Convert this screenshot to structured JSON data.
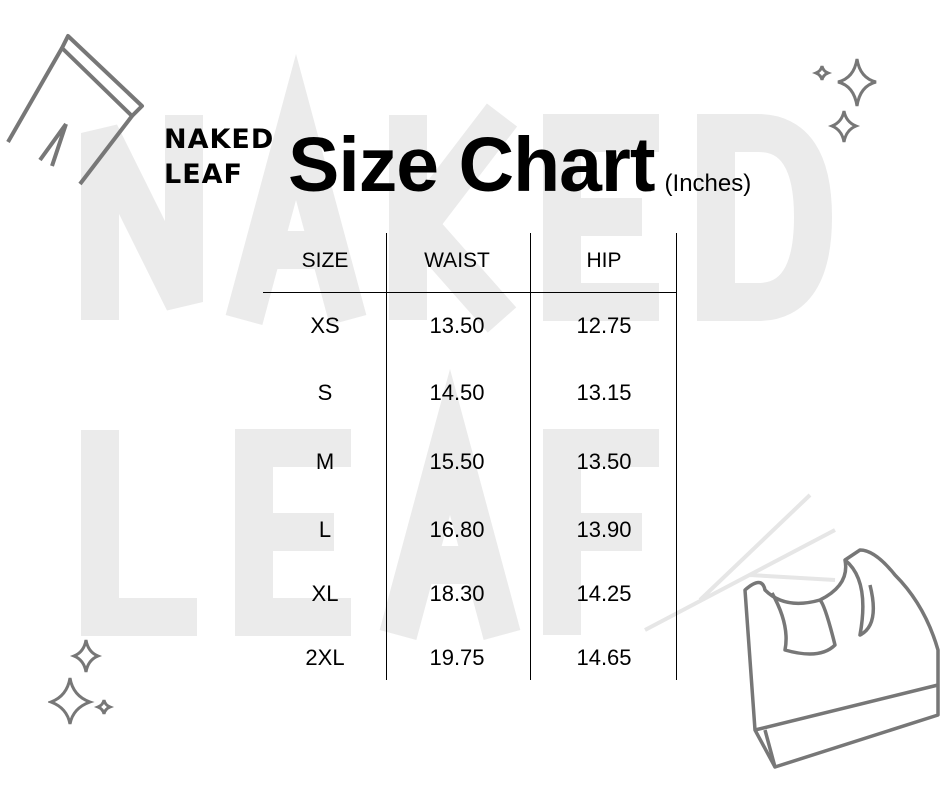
{
  "watermark": {
    "line1": "NAKED",
    "line2": "LEAF"
  },
  "brand": {
    "line1": "NAKED",
    "line2": "LEAF"
  },
  "title": "Size Chart",
  "unit": "(Inches)",
  "table": {
    "headers": [
      "SIZE",
      "WAIST",
      "HIP"
    ],
    "rows": [
      [
        "XS",
        "13.50",
        "12.75"
      ],
      [
        "S",
        "14.50",
        "13.15"
      ],
      [
        "M",
        "15.50",
        "13.50"
      ],
      [
        "L",
        "16.80",
        "13.90"
      ],
      [
        "XL",
        "18.30",
        "14.25"
      ],
      [
        "2XL",
        "19.75",
        "14.65"
      ]
    ]
  },
  "icons": [
    "leggings-icon",
    "sparkles-icon",
    "sports-bra-icon",
    "twig-icon"
  ]
}
